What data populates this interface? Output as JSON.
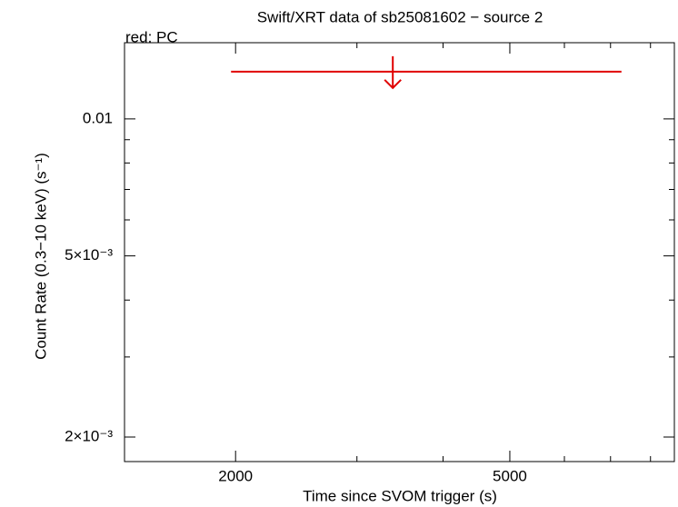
{
  "chart_data": {
    "type": "scatter",
    "title": "Swift/XRT data of sb25081602 − source 2",
    "xlabel": "Time since SVOM trigger (s)",
    "ylabel": "Count Rate (0.3−10 keV) (s⁻¹)",
    "xscale": "log",
    "yscale": "log",
    "xlim": [
      1380,
      8664
    ],
    "ylim": [
      0.001767,
      0.0147
    ],
    "xticks": [
      2000,
      5000
    ],
    "xminor": [
      3000,
      4000,
      6000,
      7000,
      8000
    ],
    "yticks": [
      0.01,
      {
        "value": 0.005,
        "label": "5×10⁻³"
      },
      {
        "value": 0.002,
        "label": "2×10⁻³"
      }
    ],
    "yminor": [
      0.003,
      0.004,
      0.006,
      0.007,
      0.008,
      0.009
    ],
    "series": [
      {
        "name": "red: PC",
        "color": "#e00000",
        "x": [
          3382
        ],
        "xlo": [
          1970
        ],
        "xhi": [
          7260
        ],
        "values": [
          0.0127
        ],
        "upper_limit": true
      }
    ]
  }
}
